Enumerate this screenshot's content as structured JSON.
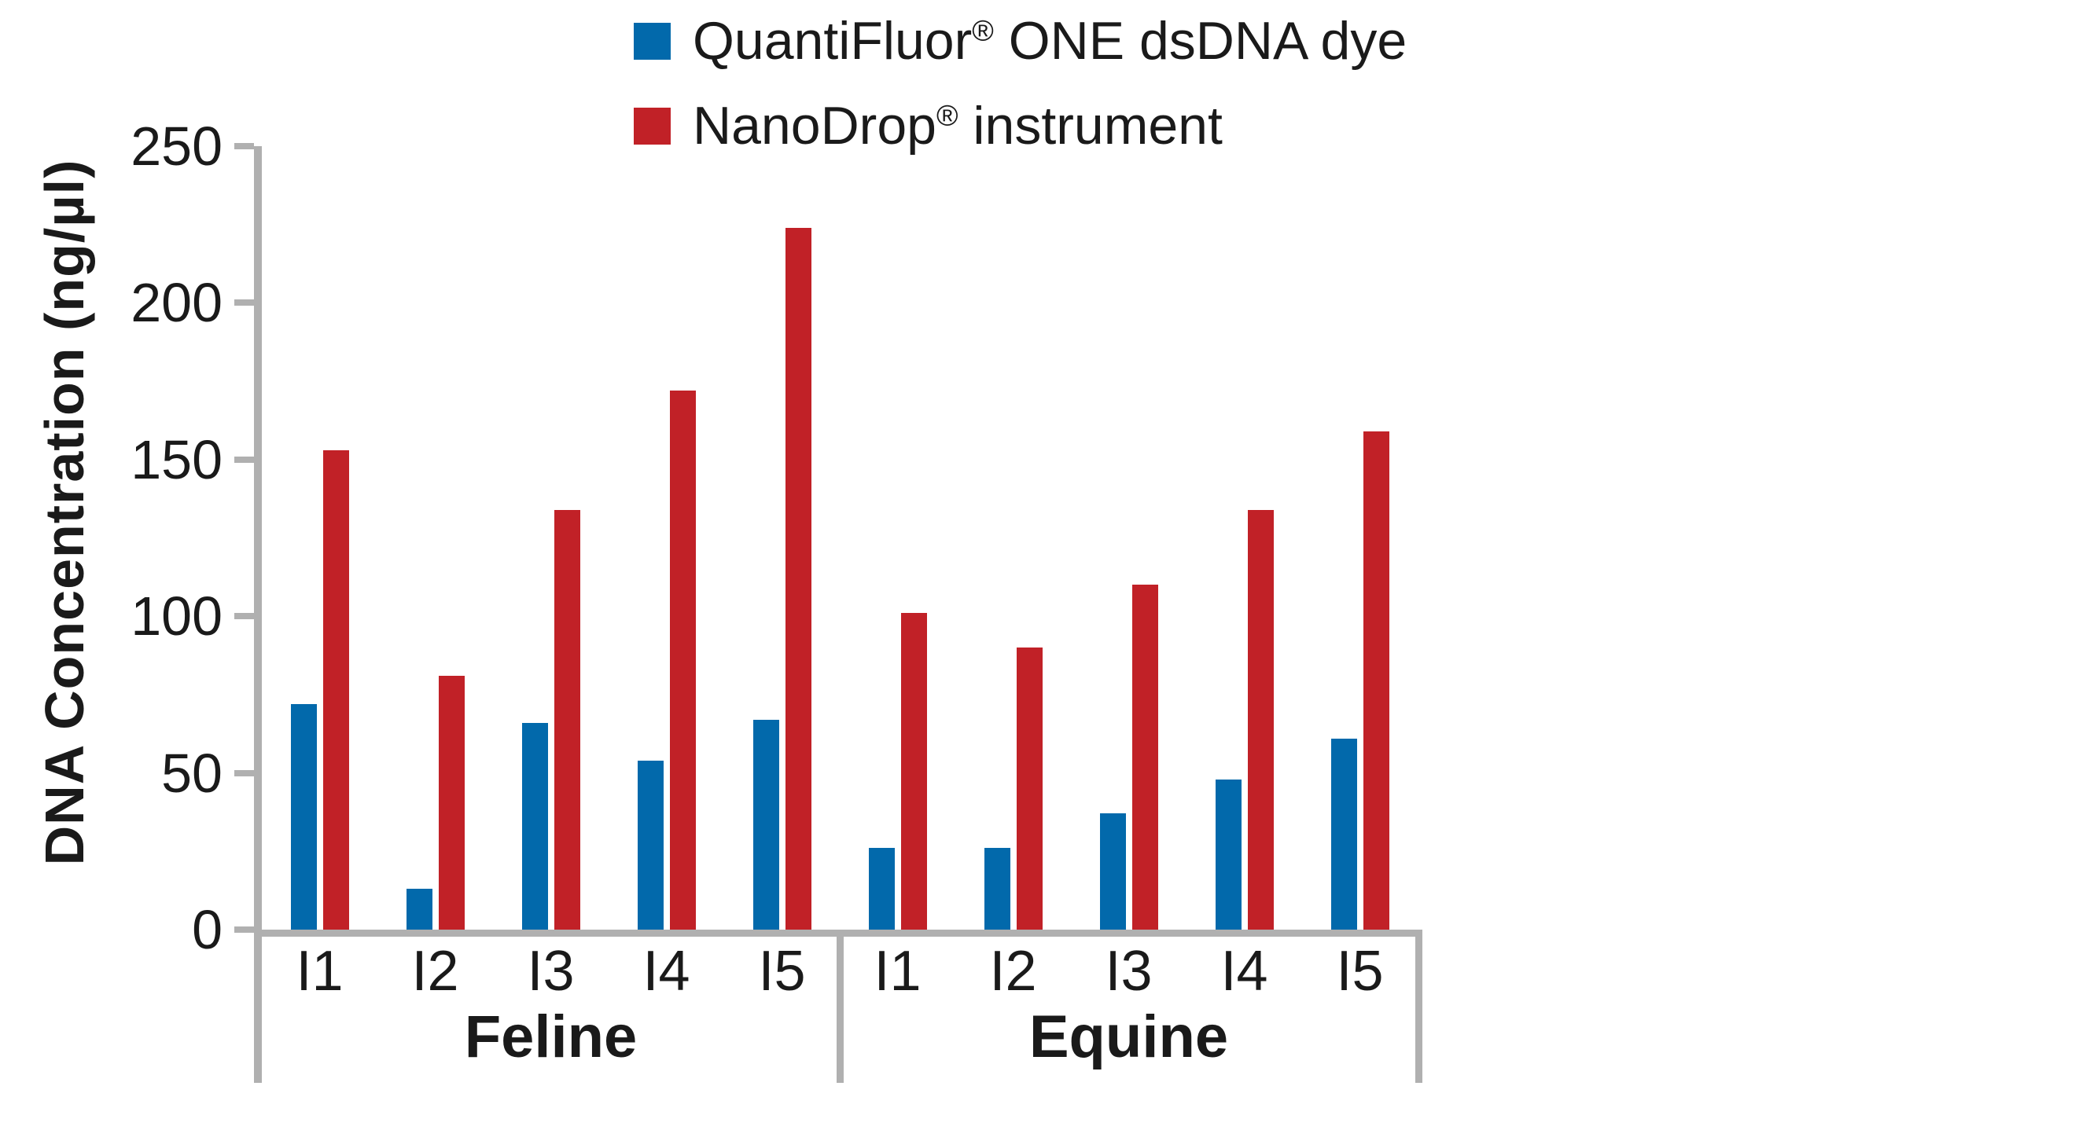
{
  "legend": {
    "items": [
      {
        "name_pre": "QuantiFluor",
        "reg": "®",
        "name_post": " ONE dsDNA dye",
        "color": "#0269AB",
        "swatch_icon": "blue-square"
      },
      {
        "name_pre": "NanoDrop",
        "reg": "®",
        "name_post": " instrument",
        "color": "#C12127",
        "swatch_icon": "red-square"
      }
    ]
  },
  "y_axis": {
    "title": "DNA Concentration (ng/µl)",
    "ticks": [
      0,
      50,
      100,
      150,
      200,
      250
    ],
    "max": 250
  },
  "chart_data": {
    "type": "bar",
    "title": "",
    "xlabel": "",
    "ylabel": "DNA Concentration (ng/µl)",
    "ylim": [
      0,
      250
    ],
    "grid": false,
    "legend_position": "top",
    "groups": [
      {
        "label": "Feline",
        "categories": [
          "I1",
          "I2",
          "I3",
          "I4",
          "I5"
        ],
        "series": [
          {
            "name": "QuantiFluor® ONE dsDNA dye",
            "color": "#0269AB",
            "values": [
              72,
              13,
              66,
              54,
              67
            ]
          },
          {
            "name": "NanoDrop® instrument",
            "color": "#C12127",
            "values": [
              153,
              81,
              134,
              172,
              224
            ]
          }
        ]
      },
      {
        "label": "Equine",
        "categories": [
          "I1",
          "I2",
          "I3",
          "I4",
          "I5"
        ],
        "series": [
          {
            "name": "QuantiFluor® ONE dsDNA dye",
            "color": "#0269AB",
            "values": [
              26,
              26,
              37,
              48,
              61
            ]
          },
          {
            "name": "NanoDrop® instrument",
            "color": "#C12127",
            "values": [
              101,
              90,
              110,
              134,
              159
            ]
          }
        ]
      }
    ]
  },
  "colors": {
    "axis": "#B0B0B0",
    "text": "#1A1A1A",
    "series_blue": "#0269AB",
    "series_red": "#C12127",
    "background": "#FFFFFF"
  }
}
